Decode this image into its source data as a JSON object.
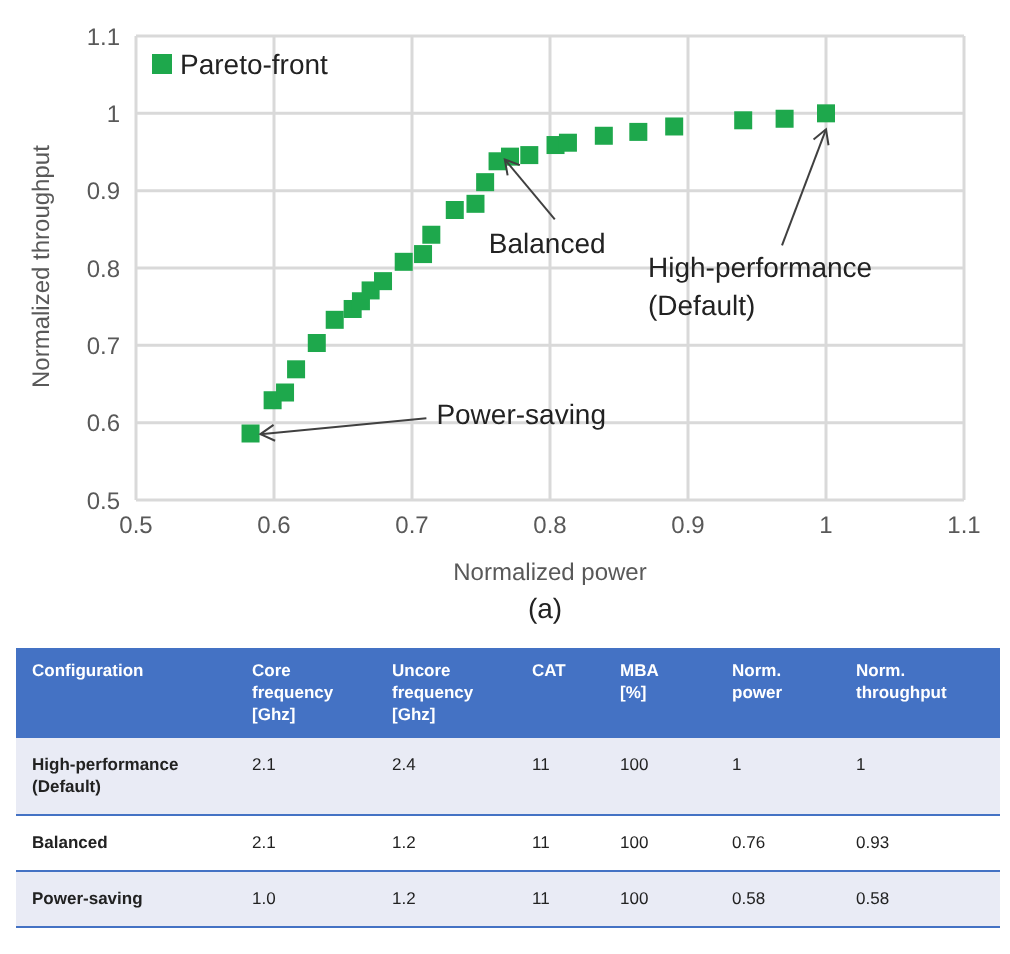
{
  "chart_data": [
    {
      "type": "scatter",
      "xlabel": "Normalized power",
      "ylabel": "Normalized throughput",
      "xlim": [
        0.5,
        1.1
      ],
      "xticks": [
        0.5,
        0.6,
        0.7,
        0.8,
        0.9,
        1,
        1.1
      ],
      "ylim": [
        0.5,
        1.1
      ],
      "yticks": [
        0.5,
        0.6,
        0.7,
        0.8,
        0.9,
        1,
        1.1
      ],
      "grid": true,
      "legend": "top left",
      "marker": "square",
      "series": [
        {
          "name": "Pareto-front",
          "color": "#1ea84c",
          "x": [
            0.583,
            0.599,
            0.608,
            0.616,
            0.631,
            0.644,
            0.657,
            0.663,
            0.67,
            0.679,
            0.694,
            0.708,
            0.714,
            0.731,
            0.746,
            0.753,
            0.762,
            0.771,
            0.785,
            0.804,
            0.813,
            0.839,
            0.864,
            0.89,
            0.94,
            0.97,
            1.0
          ],
          "values": [
            0.586,
            0.629,
            0.639,
            0.669,
            0.703,
            0.733,
            0.747,
            0.757,
            0.771,
            0.783,
            0.808,
            0.818,
            0.843,
            0.875,
            0.883,
            0.911,
            0.938,
            0.944,
            0.946,
            0.959,
            0.962,
            0.971,
            0.976,
            0.983,
            0.991,
            0.993,
            1.0
          ]
        }
      ],
      "annotations": [
        {
          "text": "Power-saving",
          "x": 0.58,
          "y": 0.58
        },
        {
          "text": "Balanced",
          "x": 0.76,
          "y": 0.93
        },
        {
          "text": "High-performance\n(Default)",
          "x": 1,
          "y": 1
        },
        "(a)"
      ]
    },
    {
      "type": "other",
      "categories": [
        "Configuration",
        "Core\nfrequency\n[Ghz]",
        "Uncore\nfrequency\n[Ghz]",
        "CAT",
        "MBA\n[%]",
        "Norm.\npower",
        "Norm.\nthroughput"
      ],
      "cell_labels": [
        [
          "High-performance\n(Default)",
          "2.1",
          "2.4",
          "11",
          "100",
          "1",
          "1"
        ],
        [
          "Balanced",
          "2.1",
          "1.2",
          "11",
          "100",
          "0.76",
          "0.93"
        ],
        [
          "Power-saving",
          "1.0",
          "1.2",
          "11",
          "100",
          "0.58",
          "0.58"
        ]
      ]
    }
  ]
}
